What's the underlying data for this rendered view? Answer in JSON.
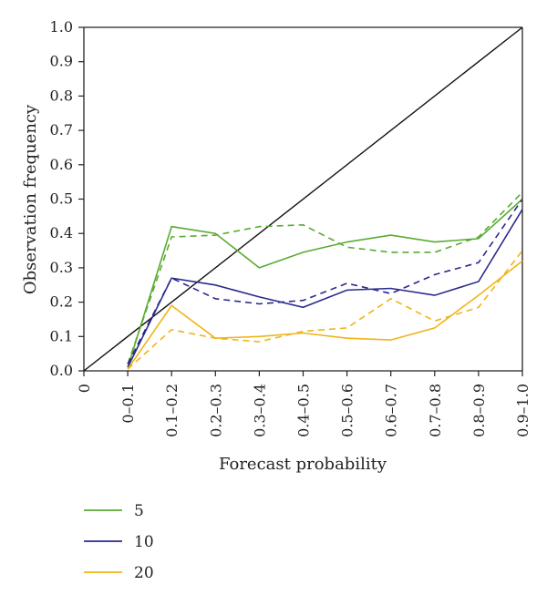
{
  "chart_data": {
    "type": "line",
    "xlabel": "Forecast probability",
    "ylabel": "Observation frequency",
    "x_origin_label": "0",
    "categories": [
      "0–0.1",
      "0.1–0.2",
      "0.2–0.3",
      "0.3–0.4",
      "0.4–0.5",
      "0.5–0.6",
      "0.6–0.7",
      "0.7–0.8",
      "0.8–0.9",
      "0.9–1.0"
    ],
    "ylim": [
      0,
      1
    ],
    "yticks": [
      "0.0",
      "0.1",
      "0.2",
      "0.3",
      "0.4",
      "0.5",
      "0.6",
      "0.7",
      "0.8",
      "0.9",
      "1.0"
    ],
    "reference_line": "diagonal y = x",
    "grid": false,
    "legend_position": "bottom-left",
    "series": [
      {
        "name": "5",
        "style": "solid",
        "color": "#5aaa32",
        "values": [
          0.01,
          0.42,
          0.4,
          0.3,
          0.345,
          0.375,
          0.395,
          0.375,
          0.385,
          0.5
        ]
      },
      {
        "name": "5",
        "style": "dashed",
        "color": "#5aaa32",
        "values": [
          0.02,
          0.39,
          0.395,
          0.42,
          0.425,
          0.36,
          0.345,
          0.345,
          0.39,
          0.52
        ]
      },
      {
        "name": "10",
        "style": "solid",
        "color": "#2b2a8c",
        "values": [
          0.01,
          0.27,
          0.25,
          0.215,
          0.185,
          0.235,
          0.24,
          0.22,
          0.26,
          0.47
        ]
      },
      {
        "name": "10",
        "style": "dashed",
        "color": "#2b2a8c",
        "values": [
          0.02,
          0.27,
          0.21,
          0.195,
          0.205,
          0.255,
          0.225,
          0.28,
          0.315,
          0.5
        ]
      },
      {
        "name": "20",
        "style": "solid",
        "color": "#f0b417",
        "values": [
          0.005,
          0.19,
          0.095,
          0.1,
          0.11,
          0.095,
          0.09,
          0.125,
          0.22,
          0.32
        ]
      },
      {
        "name": "20",
        "style": "dashed",
        "color": "#f0b417",
        "values": [
          0.005,
          0.12,
          0.095,
          0.085,
          0.115,
          0.125,
          0.21,
          0.145,
          0.185,
          0.35
        ]
      }
    ],
    "legend": [
      {
        "label": "5",
        "color": "#5aaa32"
      },
      {
        "label": "10",
        "color": "#2b2a8c"
      },
      {
        "label": "20",
        "color": "#f0b417"
      }
    ]
  }
}
